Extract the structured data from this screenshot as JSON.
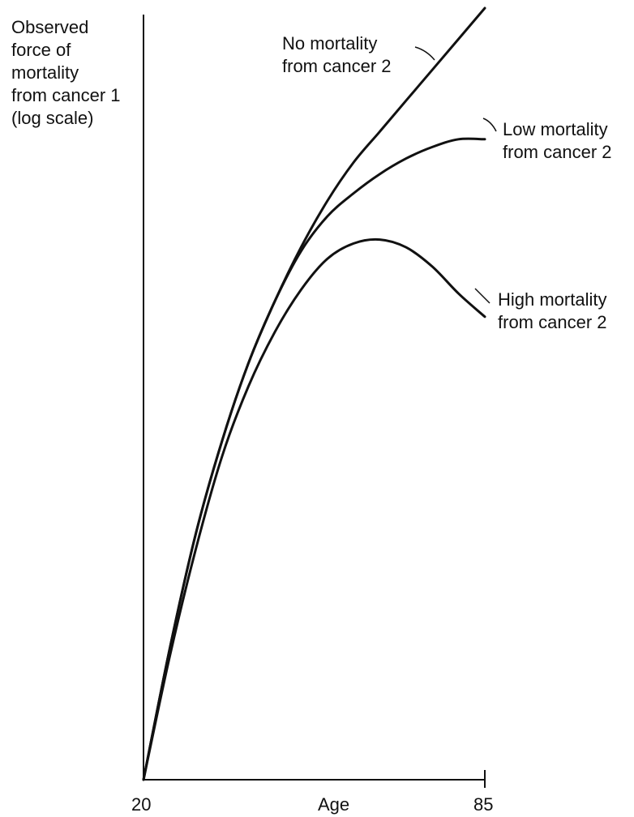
{
  "chart_data": {
    "type": "line",
    "title": "",
    "ylabel_lines": [
      "Observed",
      "force of",
      "mortality",
      "from cancer 1",
      "(log scale)"
    ],
    "xlabel": "Age",
    "y_scale": "log",
    "x_ticks": [
      "20",
      "85"
    ],
    "xlim": [
      20,
      85
    ],
    "ylim": [
      0,
      1
    ],
    "grid": false,
    "x": [
      20,
      25,
      30,
      35,
      40,
      45,
      50,
      55,
      60,
      65,
      70,
      75,
      80,
      85
    ],
    "series": [
      {
        "name": "No mortality from cancer 2",
        "label_lines": [
          "No mortality",
          "from cancer 2"
        ],
        "values": [
          0.0,
          0.17,
          0.32,
          0.44,
          0.54,
          0.62,
          0.69,
          0.75,
          0.8,
          0.84,
          0.88,
          0.92,
          0.96,
          1.0
        ]
      },
      {
        "name": "Low mortality from cancer 2",
        "label_lines": [
          "Low mortality",
          "from cancer 2"
        ],
        "values": [
          0.0,
          0.17,
          0.32,
          0.44,
          0.54,
          0.62,
          0.685,
          0.73,
          0.76,
          0.785,
          0.805,
          0.82,
          0.83,
          0.83
        ]
      },
      {
        "name": "High mortality from cancer 2",
        "label_lines": [
          "High mortality",
          "from cancer 2"
        ],
        "values": [
          0.0,
          0.16,
          0.3,
          0.42,
          0.51,
          0.58,
          0.635,
          0.675,
          0.695,
          0.7,
          0.69,
          0.665,
          0.63,
          0.6
        ]
      }
    ]
  }
}
